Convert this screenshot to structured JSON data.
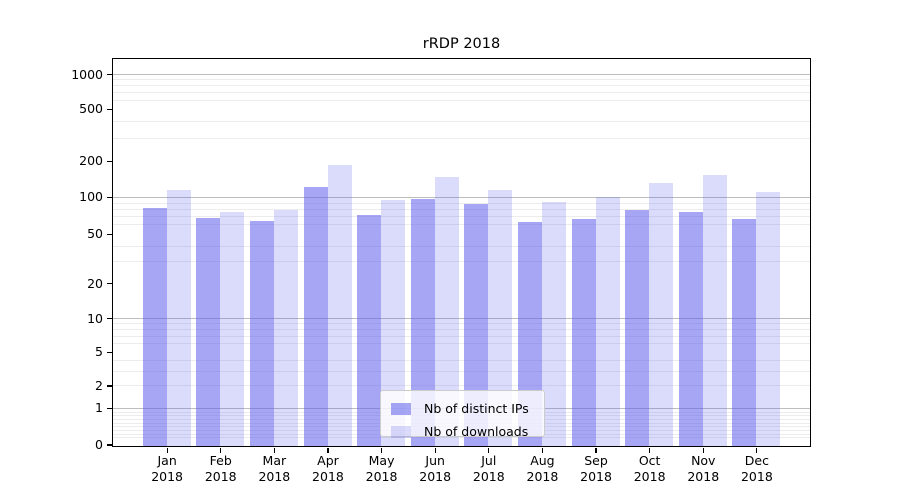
{
  "chart_data": {
    "type": "bar",
    "title": "rRDP 2018",
    "categories": [
      "Jan",
      "Feb",
      "Mar",
      "Apr",
      "May",
      "Jun",
      "Jul",
      "Aug",
      "Sep",
      "Oct",
      "Nov",
      "Dec"
    ],
    "category_year": "2018",
    "x_tick_labels": [
      "Jan\n2018",
      "Feb\n2018",
      "Mar\n2018",
      "Apr\n2018",
      "May\n2018",
      "Jun\n2018",
      "Jul\n2018",
      "Aug\n2018",
      "Sep\n2018",
      "Oct\n2018",
      "Nov\n2018",
      "Dec\n2018"
    ],
    "series": [
      {
        "name": "Nb of distinct IPs",
        "color_hex": "#a6a6f1",
        "fill": "rgba(92,92,235,0.55)",
        "values": [
          82,
          67,
          64,
          121,
          71,
          96,
          88,
          62,
          66,
          78,
          75,
          66
        ]
      },
      {
        "name": "Nb of downloads",
        "color_hex": "#d9d9f8",
        "fill": "rgba(92,92,235,0.22)",
        "values": [
          114,
          76,
          79,
          185,
          94,
          146,
          115,
          91,
          100,
          130,
          151,
          110
        ]
      }
    ],
    "xlabel": "",
    "ylabel": "",
    "y_axis": {
      "scale": "symlog",
      "ticks": [
        0,
        1,
        2,
        5,
        10,
        20,
        50,
        100,
        200,
        500,
        1000
      ],
      "anchors": [
        [
          0,
          0.004
        ],
        [
          1,
          0.0984
        ],
        [
          2,
          0.1567
        ],
        [
          5,
          0.2435
        ],
        [
          10,
          0.3303
        ],
        [
          20,
          0.421
        ],
        [
          50,
          0.5479
        ],
        [
          100,
          0.6438
        ],
        [
          200,
          0.737
        ],
        [
          500,
          0.8718
        ],
        [
          1000,
          0.9611
        ]
      ],
      "minor_gridline_values": [
        0.2,
        0.3,
        0.4,
        0.5,
        0.6,
        0.7,
        0.8,
        0.9,
        2,
        3,
        4,
        6,
        7,
        8,
        9,
        30,
        40,
        60,
        70,
        80,
        90,
        300,
        400,
        600,
        700,
        800,
        900
      ],
      "major_gridline_values": [
        1,
        10,
        100,
        1000
      ]
    },
    "grid": true,
    "legend_position": "lower-center",
    "colors": {
      "major_grid": "#bdbdbd",
      "minor_grid": "#ececec",
      "spine": "#000000",
      "legend_border": "#cccccc"
    }
  }
}
